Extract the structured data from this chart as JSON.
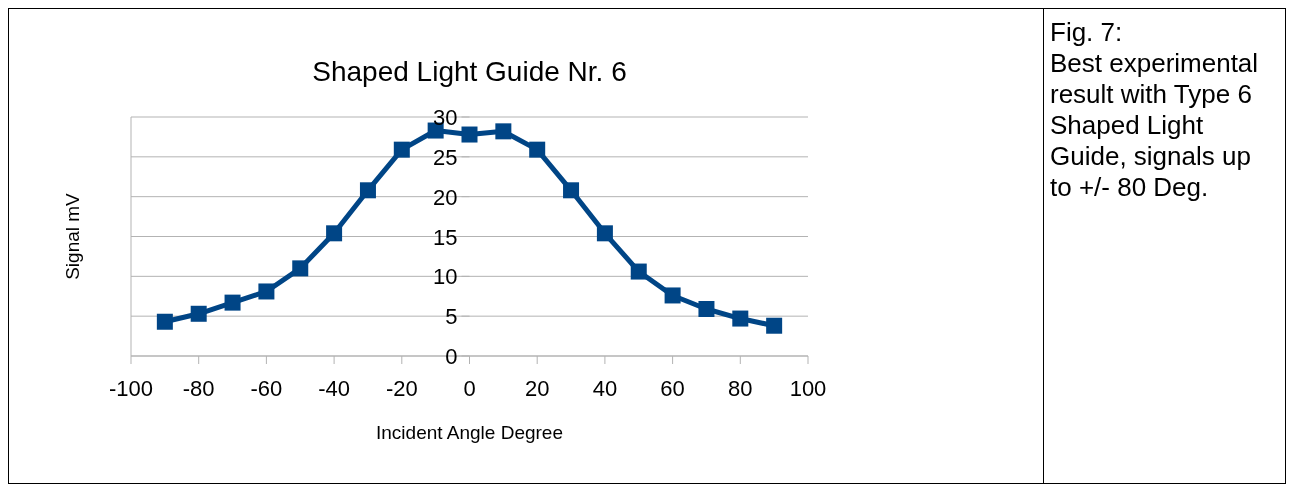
{
  "chart_data": {
    "type": "line",
    "title": "Shaped Light Guide Nr. 6",
    "xlabel": "Incident Angle Degree",
    "ylabel": "Signal mV",
    "x": [
      -90,
      -80,
      -70,
      -60,
      -50,
      -40,
      -30,
      -20,
      -10,
      0,
      10,
      20,
      30,
      40,
      50,
      60,
      70,
      80,
      90
    ],
    "series": [
      {
        "color": "#004586",
        "values": [
          4.3,
          5.3,
          6.7,
          8.1,
          11.0,
          15.4,
          20.8,
          25.9,
          28.3,
          27.8,
          28.2,
          25.9,
          20.8,
          15.4,
          10.6,
          7.6,
          5.9,
          4.7,
          3.8
        ]
      }
    ],
    "xlim": [
      -100,
      100
    ],
    "xticks": [
      -100,
      -80,
      -60,
      -40,
      -20,
      0,
      20,
      40,
      60,
      80,
      100
    ],
    "ylim": [
      0,
      30
    ],
    "yticks": [
      0,
      5,
      10,
      15,
      20,
      25,
      30
    ],
    "grid": "y",
    "legend": false,
    "marker": "square",
    "line_style": "solid",
    "annotations": [
      "Fig. 7:",
      "Best experimental result with Type 6 Shaped Light Guide, signals up to +/- 80 Deg."
    ]
  }
}
